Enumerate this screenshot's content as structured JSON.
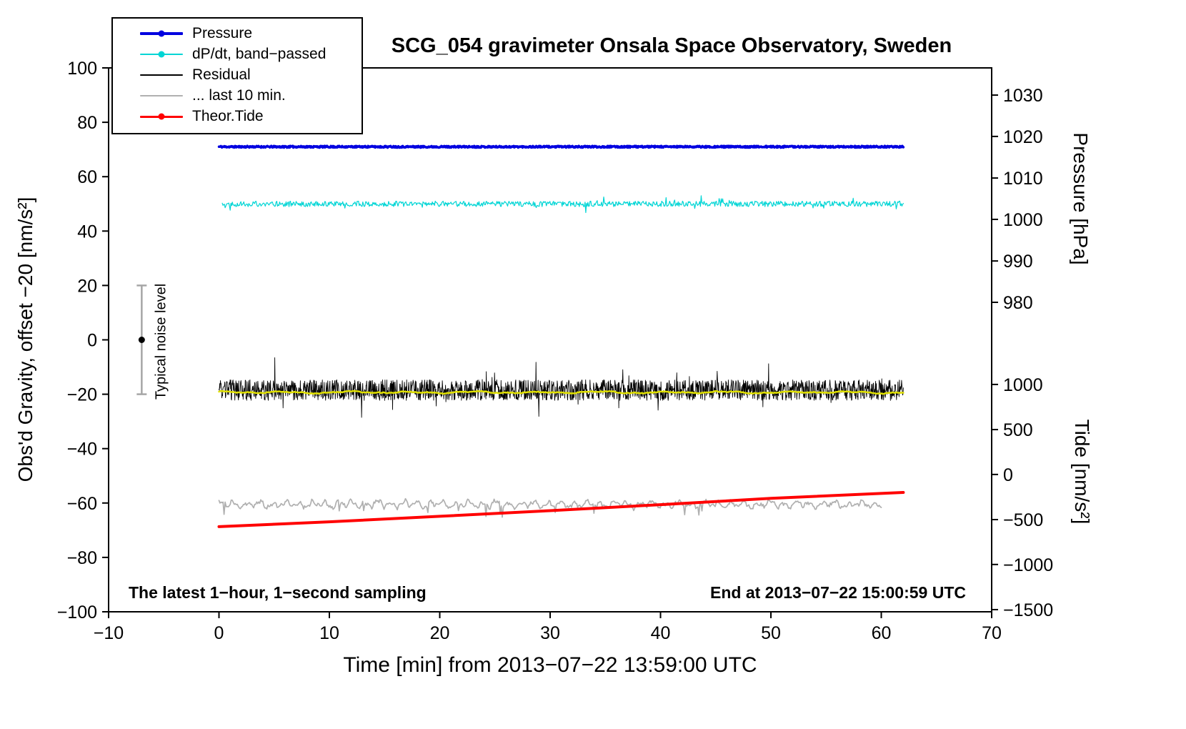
{
  "title": "SCG_054 gravimeter Onsala Space Observatory, Sweden",
  "annotations": {
    "sampling": "The latest 1−hour, 1−second sampling",
    "end_time": "End at 2013−07−22 15:00:59 UTC",
    "noise_label": "Typical noise level"
  },
  "legend": {
    "items": [
      {
        "id": "pressure",
        "label": "Pressure",
        "color": "#0000e0",
        "line_width": 4,
        "marker": true
      },
      {
        "id": "dpdt",
        "label": "dP/dt, band−passed",
        "color": "#00d5d5",
        "line_width": 2,
        "marker": true
      },
      {
        "id": "residual",
        "label": "Residual",
        "color": "#000000",
        "line_width": 2,
        "marker": false
      },
      {
        "id": "last10",
        "label": "... last 10 min.",
        "color": "#b0b0b0",
        "line_width": 2,
        "marker": false
      },
      {
        "id": "tide",
        "label": "Theor.Tide",
        "color": "#ff0000",
        "line_width": 3,
        "marker": true
      }
    ]
  },
  "chart_data": {
    "type": "line",
    "title": "SCG_054 gravimeter Onsala Space Observatory, Sweden",
    "xlabel": "Time [min] from 2013−07−22 13:59:00 UTC",
    "ylabel_left": "Obs'd Gravity, offset −20 [nm/s²]",
    "ylabel_right_pressure": "Pressure [hPa]",
    "ylabel_right_tide": "Tide [nm/s²]",
    "xlim": [
      -10,
      70
    ],
    "ylim_left": [
      -100,
      100
    ],
    "grid": false,
    "legend_position": "top-left",
    "x_ticks": {
      "values": [
        -10,
        0,
        10,
        20,
        30,
        40,
        50,
        60,
        70
      ],
      "labels": [
        "−10",
        "0",
        "10",
        "20",
        "30",
        "40",
        "50",
        "60",
        "70"
      ]
    },
    "y_ticks_left": {
      "values": [
        100,
        80,
        60,
        40,
        20,
        0,
        -20,
        -40,
        -60,
        -80,
        -100
      ],
      "labels": [
        "100",
        "80",
        "60",
        "40",
        "20",
        "0",
        "−20",
        "−40",
        "−60",
        "−80",
        "−100"
      ]
    },
    "pressure_axis": {
      "tick_labels": [
        "1030",
        "1020",
        "1010",
        "1000",
        "990",
        "980"
      ],
      "tick_left_values": [
        90,
        74.8,
        59.5,
        44.3,
        29,
        13.8
      ]
    },
    "tide_axis": {
      "tick_labels": [
        "1000",
        "500",
        "0",
        "−500",
        "−1000",
        "−1500"
      ],
      "tick_left_values": [
        -16.4,
        -33,
        -49.5,
        -66.1,
        -82.6,
        -99.2
      ]
    },
    "noise_bar": {
      "x": -7,
      "center": 0,
      "half_height": 20
    },
    "series": [
      {
        "id": "pressure",
        "name": "Pressure",
        "color": "#0000e0",
        "width": 3.5,
        "gen": "noise",
        "baseline": 71,
        "amplitude": 0.3,
        "x_start": 0,
        "x_end": 62,
        "points": 1400,
        "seed": 11,
        "approx_pressure_hPa": 1017.5
      },
      {
        "id": "dpdt",
        "name": "dP/dt, band−passed",
        "color": "#00d5d5",
        "width": 1.2,
        "gen": "noise",
        "baseline": 50,
        "amplitude": 1.0,
        "spike": 0.035,
        "x_start": 0.3,
        "x_end": 62,
        "points": 950,
        "seed": 22
      },
      {
        "id": "residual",
        "name": "Residual",
        "color": "#000000",
        "width": 0.9,
        "gen": "noise",
        "baseline": -18.5,
        "amplitude": 3.8,
        "spike": 0.02,
        "x_start": 0,
        "x_end": 62,
        "points": 1900,
        "seed": 33
      },
      {
        "id": "residual-smooth",
        "name": "Residual, smoothed",
        "color": "#e0e000",
        "width": 2.5,
        "gen": "smooth",
        "baseline": -19.3,
        "amplitude": 0.45,
        "f1": 1.1,
        "f2": 2.7,
        "f3": 0.6,
        "p1": 1.2,
        "p2": 0.3,
        "x_start": 0,
        "x_end": 62,
        "points": 500,
        "seed": 55
      },
      {
        "id": "last10",
        "name": "... last 10 min.",
        "color": "#b0b0b0",
        "width": 1.7,
        "gen": "smooth",
        "baseline": -60.5,
        "amplitude": 1.7,
        "f1": 5.3,
        "f2": 11.1,
        "f3": 2.3,
        "p1": 0.7,
        "p2": 2.1,
        "dip": 0.02,
        "x_start": 0,
        "x_end": 60,
        "points": 650,
        "seed": 44
      },
      {
        "id": "tide",
        "name": "Theor.Tide",
        "color": "#ff0000",
        "width": 4,
        "gen": "points",
        "x": [
          0,
          10,
          20,
          30,
          40,
          50,
          62
        ],
        "y": [
          -68.7,
          -66.9,
          -64.9,
          -62.8,
          -60.6,
          -58.3,
          -56.1
        ],
        "tide_start_nms2": -590,
        "tide_end_nms2": -230
      }
    ]
  }
}
